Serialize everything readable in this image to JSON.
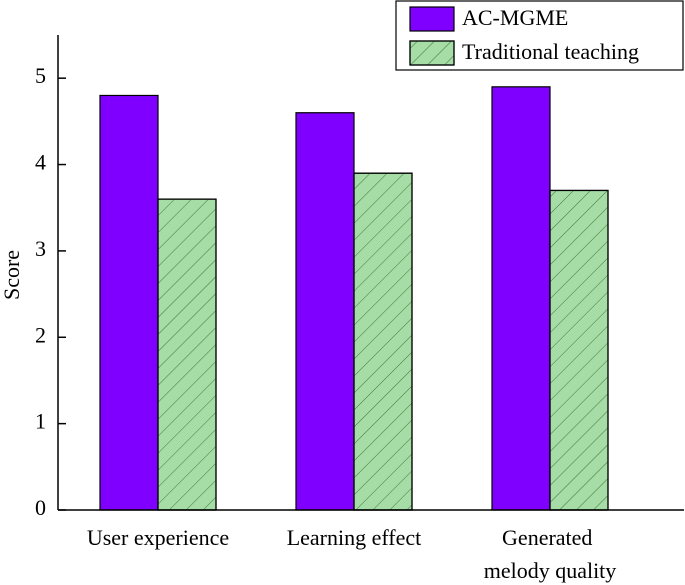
{
  "chart_data": {
    "type": "bar",
    "y_label": "Score",
    "categories": [
      "User experience",
      "Learning effect",
      "Generated melody quality"
    ],
    "series": [
      {
        "name": "AC-MGME",
        "color": "#7f00ff",
        "values": [
          4.8,
          4.6,
          4.9
        ]
      },
      {
        "name": "Traditional teaching",
        "color": "#a6dca6",
        "hatch": true,
        "values": [
          3.6,
          3.9,
          3.7
        ]
      }
    ],
    "ylim": [
      0,
      5.5
    ],
    "yticks": [
      0,
      1,
      2,
      3,
      4,
      5
    ],
    "legend": "upper right"
  }
}
